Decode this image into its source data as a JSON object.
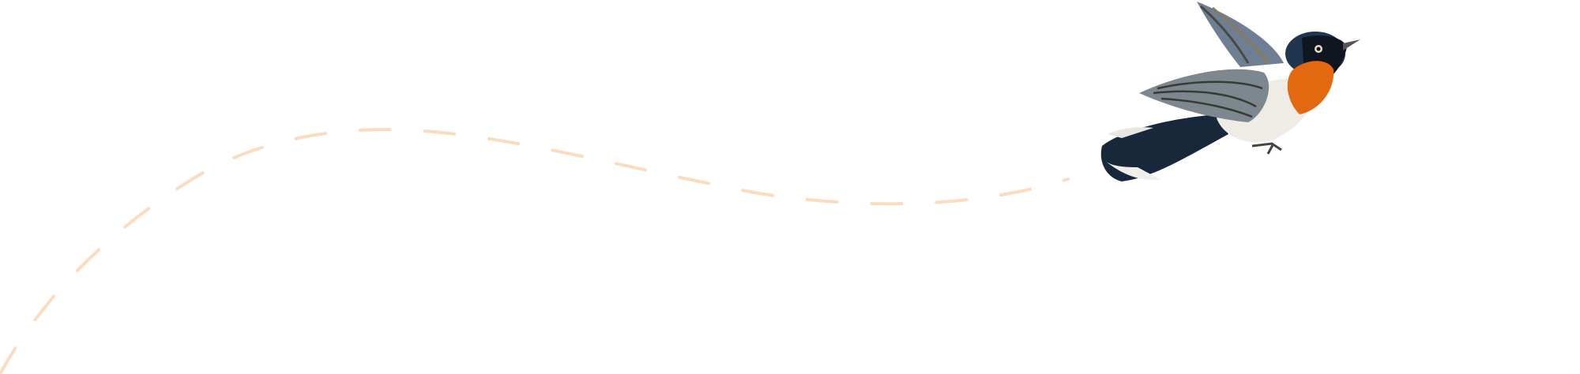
{
  "illustration": {
    "subject": "bird-in-flight",
    "colors": {
      "flight_path": "#fbdcc0",
      "throat": "#e2690f",
      "head": "#1f3550",
      "tail": "#17283a",
      "wing": "#7d8790",
      "belly": "#efece6"
    }
  }
}
